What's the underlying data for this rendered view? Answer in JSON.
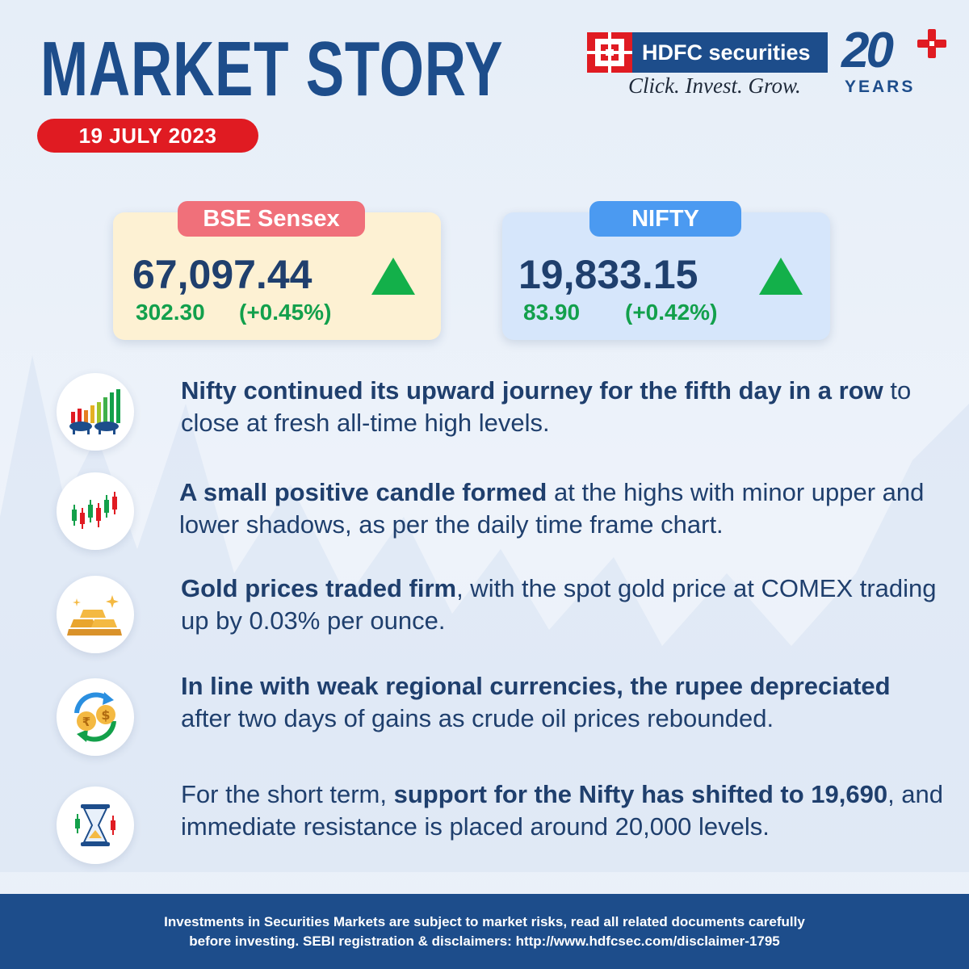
{
  "header": {
    "title": "MARKET STORY",
    "date": "19 JULY 2023"
  },
  "brand": {
    "name": "HDFC securities",
    "tagline": "Click. Invest. Grow.",
    "anniversary_number": "20",
    "anniversary_label": "YEARS"
  },
  "indices": [
    {
      "label": "BSE Sensex",
      "value": "67,097.44",
      "change": "302.30",
      "change_pct": "(+0.45%)",
      "direction": "up"
    },
    {
      "label": "NIFTY",
      "value": "19,833.15",
      "change": "83.90",
      "change_pct": "(+0.42%)",
      "direction": "up"
    }
  ],
  "points": [
    {
      "icon": "bull-bear-chart-icon",
      "bold": "Nifty continued its upward journey for the fifth day in a row",
      "rest": " to close at fresh all-time high levels."
    },
    {
      "icon": "candlestick-icon",
      "bold": "A small positive candle formed",
      "rest": " at the highs with minor upper and lower shadows, as per the daily time frame chart."
    },
    {
      "icon": "gold-bars-icon",
      "bold": "Gold prices traded firm",
      "rest": ", with the spot gold price at COMEX trading up by 0.03% per ounce."
    },
    {
      "icon": "currency-exchange-icon",
      "bold": "In line with weak regional currencies, the rupee depreciated",
      "rest": " after two days of gains as crude oil prices rebounded."
    },
    {
      "icon": "hourglass-chart-icon",
      "pre": "For the short term, ",
      "bold": "support for the Nifty has shifted to 19,690",
      "rest": ", and immediate resistance is placed around 20,000 levels."
    }
  ],
  "footer": {
    "line1": "Investments in Securities Markets are subject to market risks, read all related documents carefully",
    "line2": "before investing. SEBI registration & disclaimers: http://www.hdfcsec.com/disclaimer-1795"
  },
  "colors": {
    "primary_blue": "#1d4d8b",
    "accent_red": "#e01b22",
    "positive_green": "#12a04c"
  }
}
